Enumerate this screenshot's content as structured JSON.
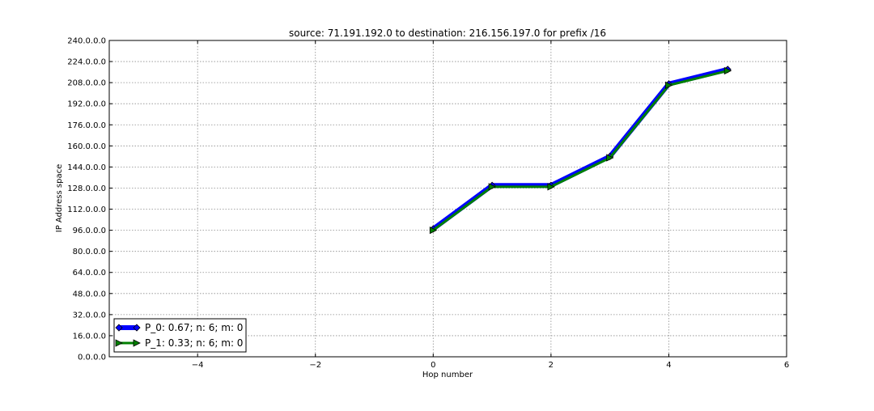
{
  "chart_data": {
    "type": "line",
    "title": "source: 71.191.192.0 to destination: 216.156.197.0 for prefix /16",
    "xlabel": "Hop number",
    "ylabel": "IP Address space",
    "xlim": [
      -5.5,
      6
    ],
    "ylim": [
      0,
      240
    ],
    "x_ticks": [
      -4,
      -2,
      0,
      2,
      4,
      6
    ],
    "x_tick_labels": [
      "−4",
      "−2",
      "0",
      "2",
      "4",
      "6"
    ],
    "y_ticks": [
      0,
      16,
      32,
      48,
      64,
      80,
      96,
      112,
      128,
      144,
      160,
      176,
      192,
      208,
      224,
      240
    ],
    "y_tick_labels": [
      "0.0.0.0",
      "16.0.0.0",
      "32.0.0.0",
      "48.0.0.0",
      "64.0.0.0",
      "80.0.0.0",
      "96.0.0.0",
      "112.0.0.0",
      "128.0.0.0",
      "144.0.0.0",
      "160.0.0.0",
      "176.0.0.0",
      "192.0.0.0",
      "208.0.0.0",
      "224.0.0.0",
      "240.0.0.0"
    ],
    "grid": true,
    "legend_position": "bottom-left",
    "series": [
      {
        "name": "P_0: 0.67; n: 6; m: 0",
        "color": "#0000ff",
        "marker": "diamond",
        "x": [
          0,
          1,
          2,
          3,
          4,
          5
        ],
        "y": [
          97,
          130,
          130,
          152,
          207,
          218
        ]
      },
      {
        "name": "P_1: 0.33; n: 6; m: 0",
        "color": "#008000",
        "marker": "triangle-right",
        "x": [
          0,
          1,
          2,
          3,
          4,
          5
        ],
        "y": [
          96,
          129,
          129,
          151,
          206,
          217
        ]
      }
    ]
  }
}
